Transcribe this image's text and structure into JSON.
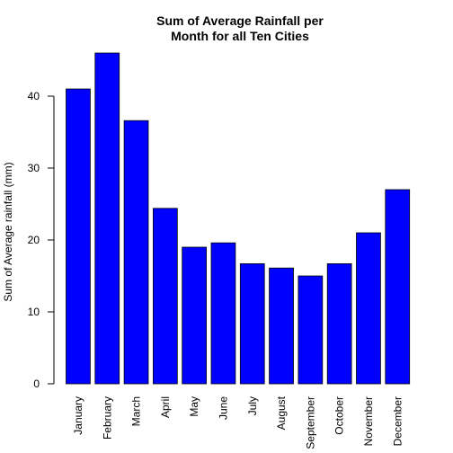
{
  "chart_data": {
    "type": "bar",
    "title_lines": [
      "Sum of Average Rainfall per",
      "Month for all Ten Cities"
    ],
    "xlabel": "",
    "ylabel": "Sum of Average rainfall (mm)",
    "categories": [
      "January",
      "February",
      "March",
      "April",
      "May",
      "June",
      "July",
      "August",
      "September",
      "October",
      "November",
      "December"
    ],
    "values": [
      41.0,
      46.0,
      36.6,
      24.4,
      19.0,
      19.6,
      16.7,
      16.1,
      15.0,
      16.7,
      21.0,
      27.0
    ],
    "yticks": [
      0,
      10,
      20,
      30,
      40
    ],
    "ylim": [
      0,
      47
    ],
    "bar_color": "#0000ff",
    "grid": false,
    "legend": "none"
  }
}
